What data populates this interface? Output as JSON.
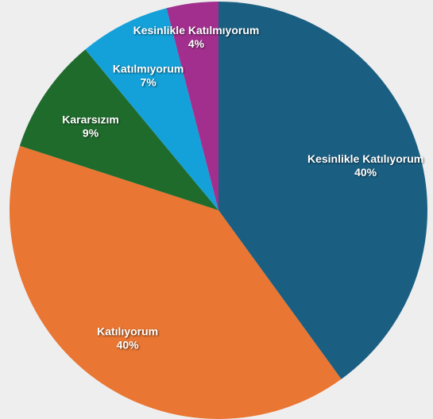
{
  "chart_data": {
    "type": "pie",
    "categories": [
      "Kesinlikle Katılıyorum",
      "Katılıyorum",
      "Kararsızım",
      "Katılmıyorum",
      "Kesinlikle Katılmıyorum"
    ],
    "values": [
      40,
      40,
      9,
      7,
      4
    ],
    "value_labels": [
      "40%",
      "40%",
      "9%",
      "7%",
      "4%"
    ],
    "colors": [
      "#1a5f82",
      "#e97632",
      "#1f6b2c",
      "#14a1d9",
      "#a22f8e"
    ]
  }
}
